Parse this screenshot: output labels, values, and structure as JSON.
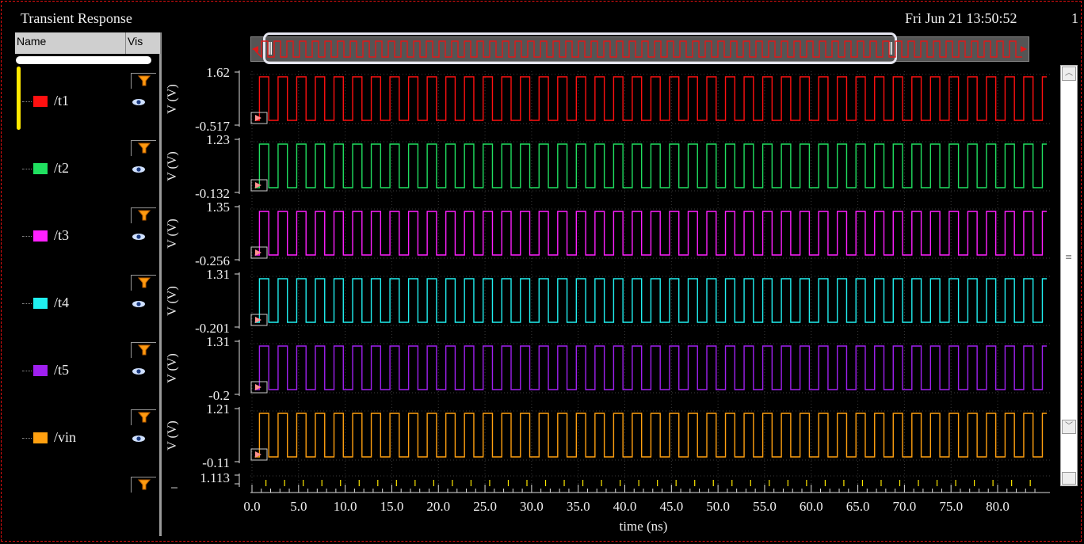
{
  "window": {
    "title": "Transient Response",
    "timestamp": "Fri Jun 21 13:50:52",
    "page_number": "1"
  },
  "browser": {
    "column_name": "Name",
    "column_vis": "Vis",
    "signals": [
      {
        "label": "/t1",
        "color": "#ff1010"
      },
      {
        "label": "/t2",
        "color": "#20e060"
      },
      {
        "label": "/t3",
        "color": "#ff20ff"
      },
      {
        "label": "/t4",
        "color": "#20f0f0"
      },
      {
        "label": "/t5",
        "color": "#a020f0"
      },
      {
        "label": "/vin",
        "color": "#ffa010"
      }
    ],
    "icons": {
      "filter": "filter-icon",
      "visibility": "eye-icon"
    }
  },
  "chart_data": {
    "type": "line",
    "xlabel": "time (ns)",
    "xlim": [
      0.0,
      85.0
    ],
    "x_ticks": [
      "0.0",
      "5.0",
      "10.0",
      "15.0",
      "20.0",
      "25.0",
      "30.0",
      "35.0",
      "40.0",
      "45.0",
      "50.0",
      "55.0",
      "60.0",
      "65.0",
      "70.0",
      "75.0",
      "80.0"
    ],
    "grid": true,
    "series": [
      {
        "name": "/t1",
        "ylabel": "V (V)",
        "ymax_label": "1.62",
        "ymin_label": "-0.517",
        "ylim": [
          -0.517,
          1.62
        ],
        "period_ns": 2.0,
        "color": "#ff1010"
      },
      {
        "name": "/t2",
        "ylabel": "V (V)",
        "ymax_label": "1.23",
        "ymin_label": "-0.132",
        "ylim": [
          -0.132,
          1.23
        ],
        "period_ns": 2.0,
        "color": "#20e060"
      },
      {
        "name": "/t3",
        "ylabel": "V (V)",
        "ymax_label": "1.35",
        "ymin_label": "-0.256",
        "ylim": [
          -0.256,
          1.35
        ],
        "period_ns": 2.0,
        "color": "#ff20ff"
      },
      {
        "name": "/t4",
        "ylabel": "V (V)",
        "ymax_label": "1.31",
        "ymin_label": "-0.201",
        "ylim": [
          -0.201,
          1.31
        ],
        "period_ns": 2.0,
        "color": "#20f0f0"
      },
      {
        "name": "/t5",
        "ylabel": "V (V)",
        "ymax_label": "1.31",
        "ymin_label": "-0.2",
        "ylim": [
          -0.2,
          1.31
        ],
        "period_ns": 2.0,
        "color": "#a020f0"
      },
      {
        "name": "/vin",
        "ylabel": "V (V)",
        "ymax_label": "1.21",
        "ymin_label": "-0.11",
        "ylim": [
          -0.11,
          1.21
        ],
        "period_ns": 2.0,
        "color": "#ffa010"
      }
    ],
    "partial_strip": {
      "ymax_label": "1.113",
      "color": "#ffe800"
    }
  }
}
